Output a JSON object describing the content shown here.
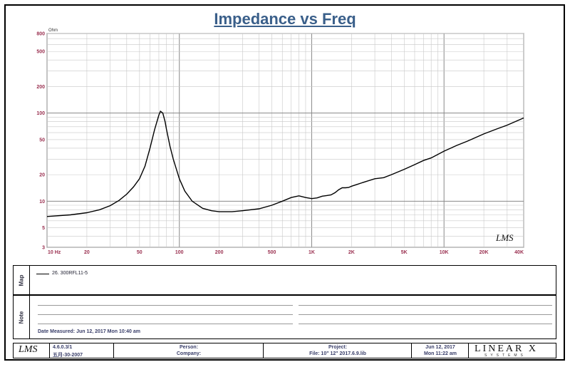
{
  "chart_data": {
    "type": "line",
    "title": "Impedance vs Freq",
    "ylabel": "Ohm",
    "xscale": "log",
    "yscale": "log",
    "xlim": [
      10,
      40000
    ],
    "ylim": [
      3,
      800
    ],
    "x_ticks": [
      10,
      20,
      50,
      100,
      200,
      500,
      1000,
      2000,
      5000,
      10000,
      20000,
      40000
    ],
    "x_tick_labels": [
      "10 Hz",
      "20",
      "50",
      "100",
      "200",
      "500",
      "1K",
      "2K",
      "5K",
      "10K",
      "20K",
      "40K"
    ],
    "y_ticks": [
      3,
      5,
      10,
      20,
      50,
      100,
      200,
      500,
      800
    ],
    "y_tick_labels": [
      "3",
      "5",
      "10",
      "20",
      "50",
      "100",
      "200",
      "500",
      "800"
    ],
    "grid": true,
    "series": [
      {
        "name": "26. 300RFL11-5",
        "color": "#000000",
        "x": [
          10,
          15,
          20,
          25,
          30,
          35,
          40,
          45,
          50,
          55,
          60,
          65,
          70,
          72,
          75,
          78,
          80,
          85,
          90,
          100,
          110,
          125,
          150,
          175,
          200,
          250,
          300,
          400,
          500,
          600,
          700,
          800,
          900,
          1000,
          1100,
          1200,
          1300,
          1400,
          1500,
          1600,
          1700,
          1800,
          1900,
          2000,
          2200,
          2500,
          3000,
          3500,
          4000,
          5000,
          6000,
          7000,
          8000,
          10000,
          12500,
          15000,
          20000,
          25000,
          30000,
          40000
        ],
        "y": [
          6.7,
          7.0,
          7.4,
          8.0,
          8.9,
          10.2,
          12.0,
          14.5,
          18.0,
          25.0,
          40.0,
          65.0,
          95.0,
          105.0,
          100.0,
          80.0,
          65.0,
          42.0,
          30.0,
          18.0,
          13.0,
          10.0,
          8.3,
          7.8,
          7.6,
          7.6,
          7.8,
          8.2,
          9.0,
          10.0,
          11.0,
          11.5,
          11.0,
          10.7,
          10.9,
          11.4,
          11.6,
          11.8,
          12.5,
          13.5,
          14.2,
          14.2,
          14.3,
          14.8,
          15.5,
          16.5,
          18.0,
          18.5,
          20.0,
          23.0,
          26.0,
          29.0,
          31.0,
          37.0,
          43.0,
          48.0,
          58.0,
          66.0,
          73.0,
          88.0
        ]
      }
    ],
    "watermark": "LMS"
  },
  "map": {
    "label": "Map",
    "legend_entry": "26. 300RFL11-5"
  },
  "notes": {
    "label": "Note",
    "date_measured": "Date Measured: Jun 12, 2017  Mon 10:40 am"
  },
  "footer": {
    "logo": "LMS",
    "version": "4.6.0.3/1",
    "version_date": "五月-30-2007",
    "person_label": "Person:",
    "company_label": "Company:",
    "project_label": "Project:",
    "file_label": "File: 10\" 12\" 2017.6.9.lib",
    "date_line1": "Jun 12, 2017",
    "date_line2": "Mon 11:22 am",
    "brand": "LINEAR X",
    "brand_sub": "SYSTEMS"
  }
}
